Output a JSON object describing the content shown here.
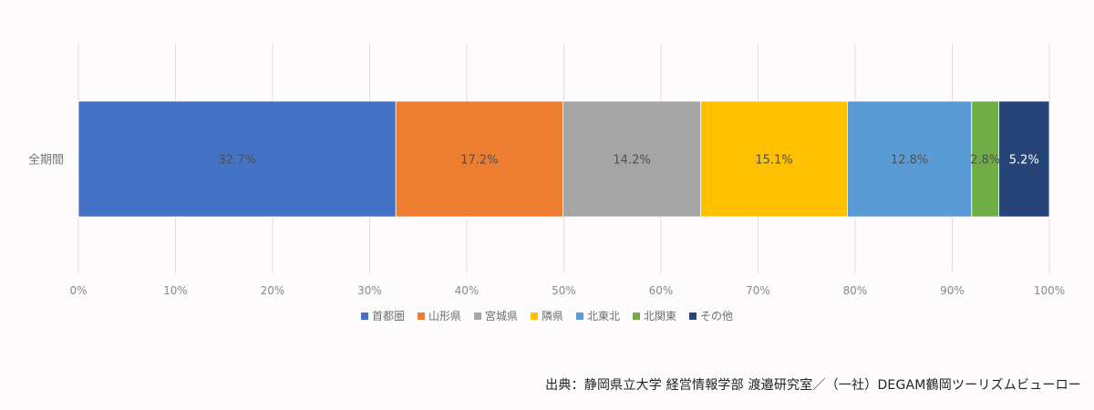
{
  "chart_data": {
    "type": "bar",
    "orientation": "horizontal",
    "stacked": true,
    "percent_stacked": true,
    "categories": [
      "全期間"
    ],
    "series": [
      {
        "name": "首都圏",
        "values": [
          32.7
        ],
        "label": "32.7%",
        "color": "#4472c4"
      },
      {
        "name": "山形県",
        "values": [
          17.2
        ],
        "label": "17.2%",
        "color": "#ed7d31"
      },
      {
        "name": "宮城県",
        "values": [
          14.2
        ],
        "label": "14.2%",
        "color": "#a5a5a5"
      },
      {
        "name": "隣県",
        "values": [
          15.1
        ],
        "label": "15.1%",
        "color": "#ffc000"
      },
      {
        "name": "北東北",
        "values": [
          12.8
        ],
        "label": "12.8%",
        "color": "#5b9bd5"
      },
      {
        "name": "北関東",
        "values": [
          2.8
        ],
        "label": "2.8%",
        "color": "#70ad47"
      },
      {
        "name": "その他",
        "values": [
          5.2
        ],
        "label": "5.2%",
        "color": "#264478"
      }
    ],
    "xlim": [
      0,
      100
    ],
    "x_ticks": [
      "0%",
      "10%",
      "20%",
      "30%",
      "40%",
      "50%",
      "60%",
      "70%",
      "80%",
      "90%",
      "100%"
    ],
    "grid": true,
    "legend_position": "bottom"
  },
  "source": "出典：静岡県立大学 経営情報学部 渡邉研究室／（一社）DEGAM鶴岡ツーリズムビューロー"
}
